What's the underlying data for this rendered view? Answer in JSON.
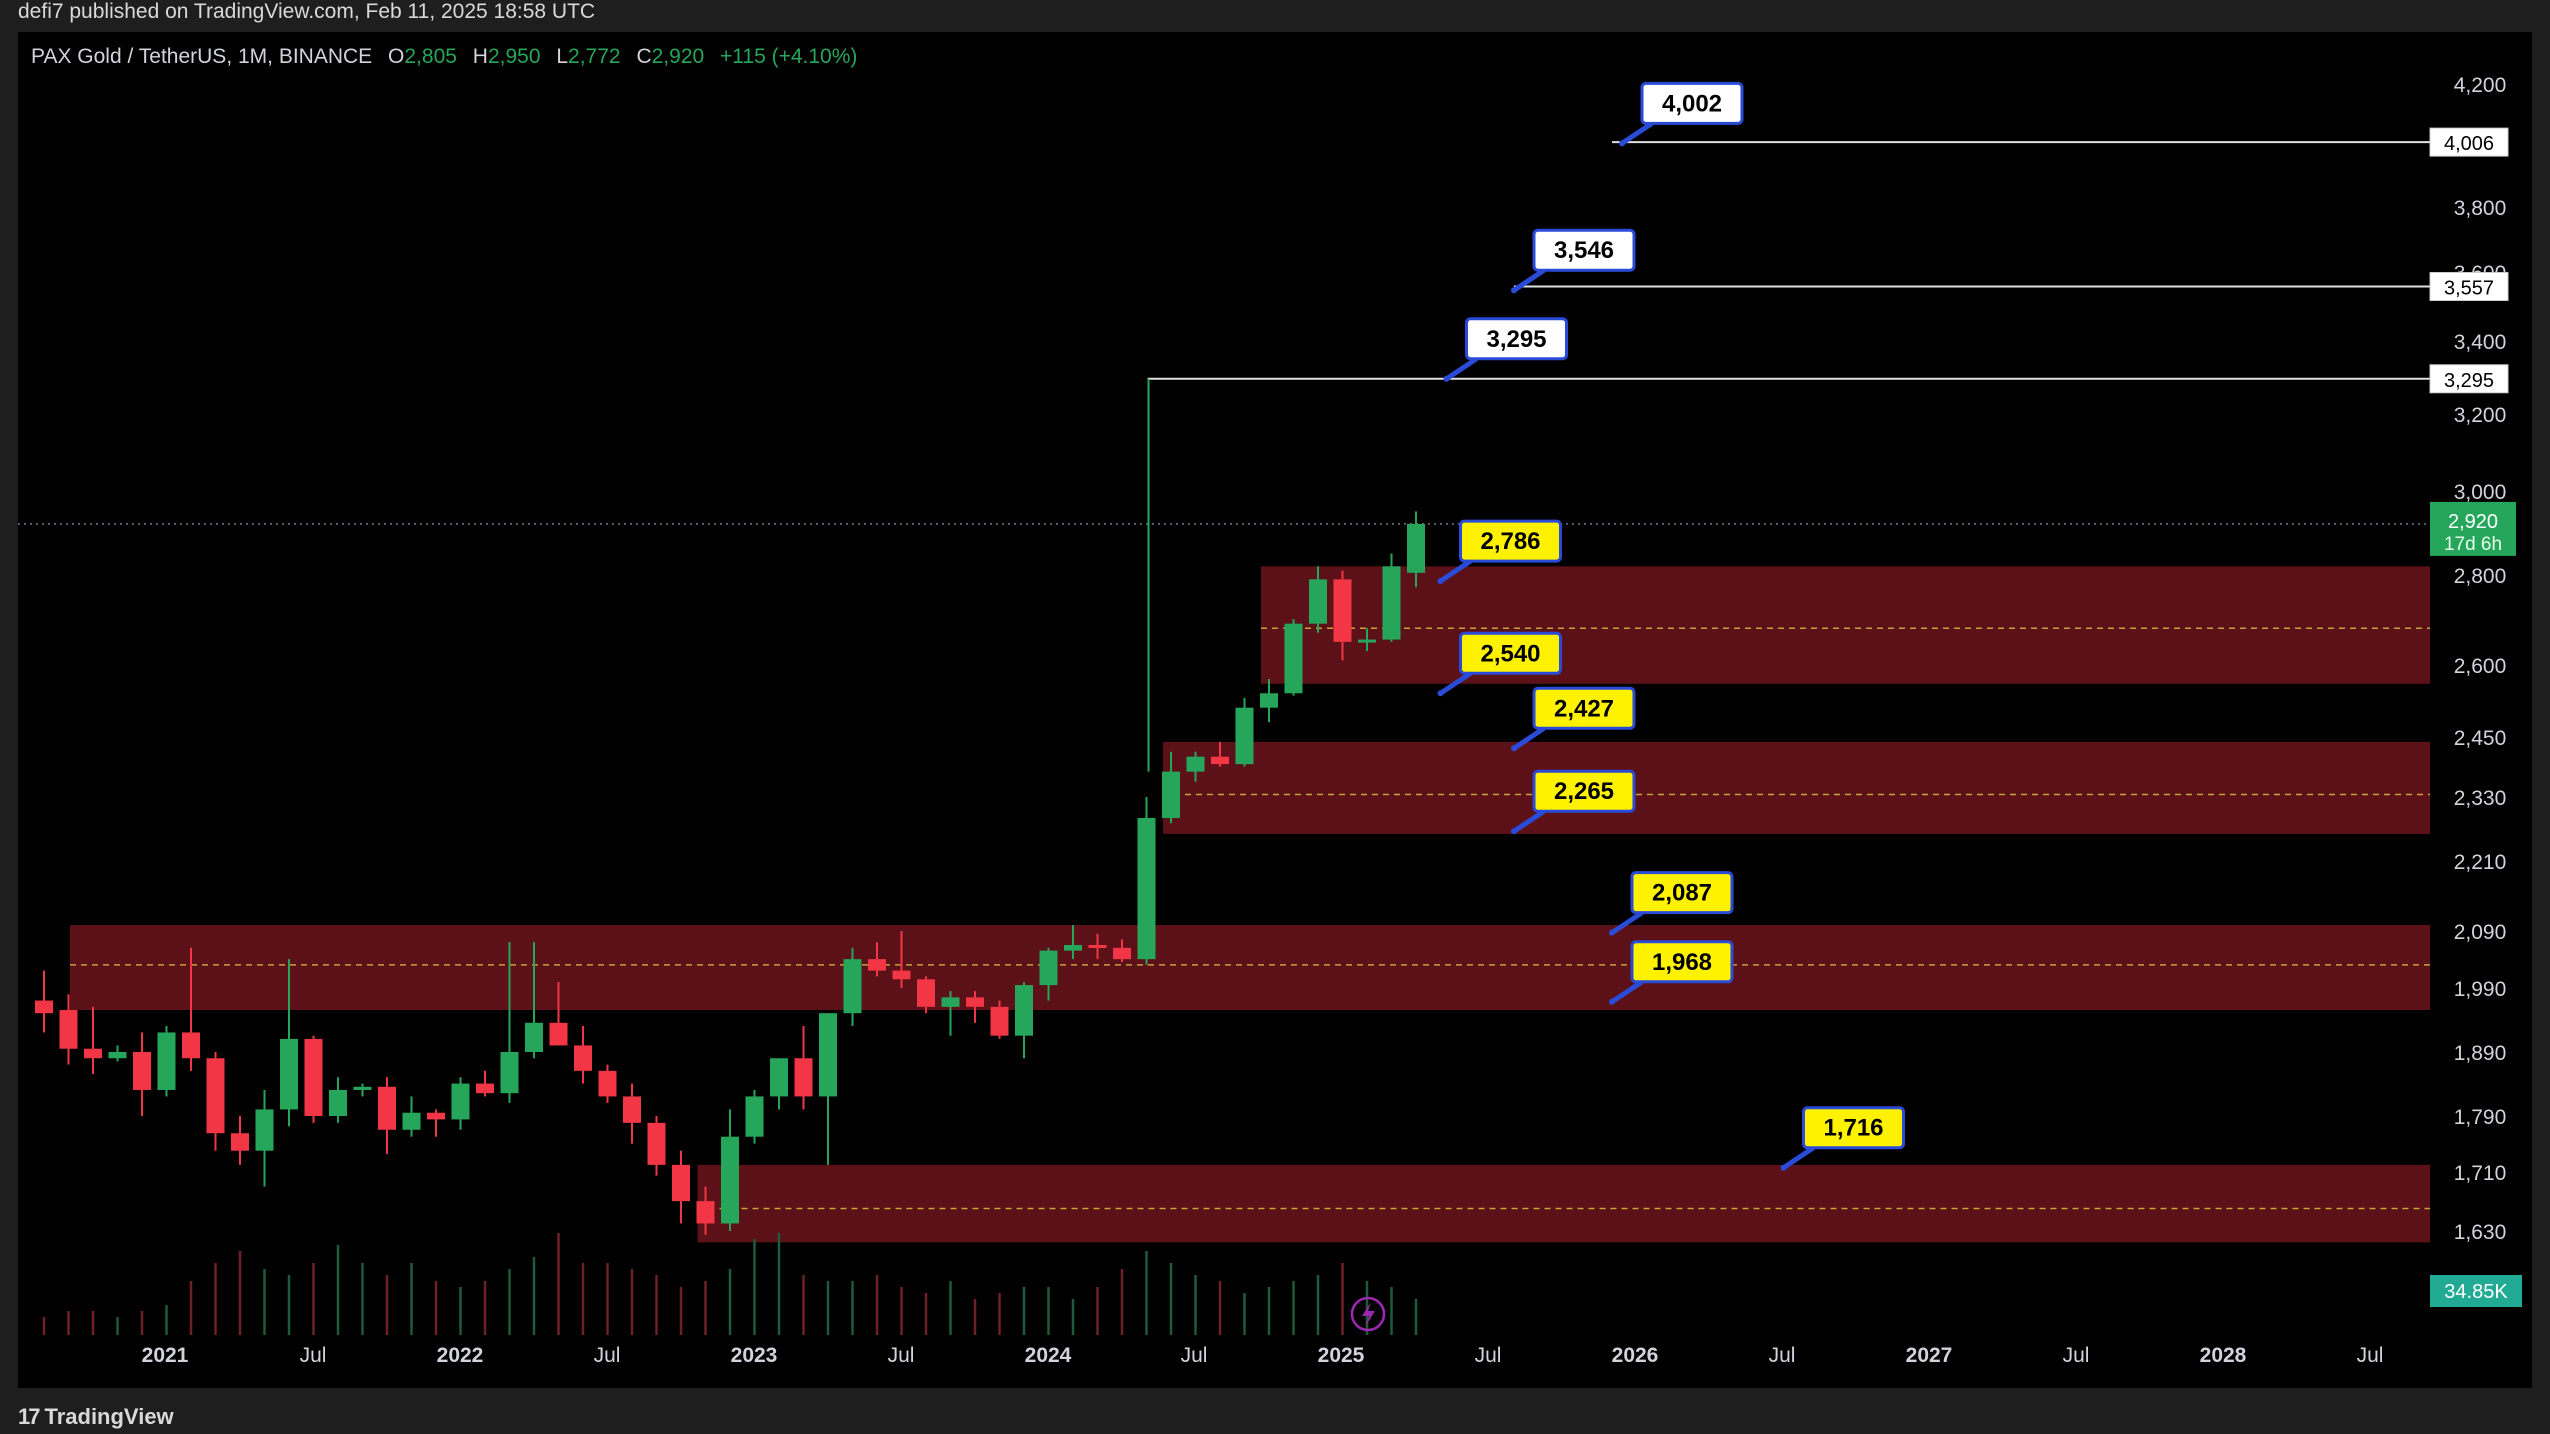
{
  "header": {
    "published": "defi7 published on TradingView.com, Feb 11, 2025 18:58 UTC"
  },
  "legend": {
    "symbol": "PAX Gold / TetherUS, 1M, BINANCE",
    "open_label": "O",
    "open": "2,805",
    "high_label": "H",
    "high": "2,950",
    "low_label": "L",
    "low": "2,772",
    "close_label": "C",
    "close": "2,920",
    "change": "+115 (+4.10%)"
  },
  "footer": {
    "brand": "TradingView",
    "brand_icon": "tradingview-logo-icon"
  },
  "colors": {
    "up": "#26a65b",
    "down": "#f23645",
    "zone": "#5c1018",
    "label_white": "#ffffff",
    "label_yellow": "#fff200",
    "label_border": "#2a4bd7",
    "price_tag": "#26a65b",
    "volume_tag": "#22ab94"
  },
  "chart_data": {
    "type": "candlestick",
    "timeframe": "1M",
    "y_scale": "log",
    "ylim": [
      1570,
      4300
    ],
    "xlim": [
      "2020-08",
      "2028-12"
    ],
    "x_ticks": [
      "2021",
      "Jul",
      "2022",
      "Jul",
      "2023",
      "Jul",
      "2024",
      "Jul",
      "2025",
      "Jul",
      "2026",
      "Jul",
      "2027",
      "Jul",
      "2028",
      "Jul"
    ],
    "y_ticks": [
      "4,200",
      "3,800",
      "3,600",
      "3,400",
      "3,200",
      "3,000",
      "2,800",
      "2,600",
      "2,450",
      "2,330",
      "2,210",
      "2,090",
      "1,990",
      "1,890",
      "1,790",
      "1,710",
      "1,630"
    ],
    "candles": [
      {
        "t": "2020-09",
        "o": 1970,
        "h": 2020,
        "l": 1920,
        "c": 1950
      },
      {
        "t": "2020-10",
        "o": 1955,
        "h": 1980,
        "l": 1870,
        "c": 1895
      },
      {
        "t": "2020-11",
        "o": 1895,
        "h": 1960,
        "l": 1855,
        "c": 1880
      },
      {
        "t": "2020-12",
        "o": 1880,
        "h": 1900,
        "l": 1875,
        "c": 1890
      },
      {
        "t": "2021-01",
        "o": 1890,
        "h": 1920,
        "l": 1790,
        "c": 1830
      },
      {
        "t": "2021-02",
        "o": 1830,
        "h": 1930,
        "l": 1820,
        "c": 1920
      },
      {
        "t": "2021-03",
        "o": 1920,
        "h": 2060,
        "l": 1860,
        "c": 1880
      },
      {
        "t": "2021-04",
        "o": 1880,
        "h": 1890,
        "l": 1740,
        "c": 1765
      },
      {
        "t": "2021-05",
        "o": 1765,
        "h": 1790,
        "l": 1720,
        "c": 1740
      },
      {
        "t": "2021-06",
        "o": 1740,
        "h": 1830,
        "l": 1690,
        "c": 1800
      },
      {
        "t": "2021-07",
        "o": 1800,
        "h": 2040,
        "l": 1775,
        "c": 1910
      },
      {
        "t": "2021-08",
        "o": 1910,
        "h": 1915,
        "l": 1780,
        "c": 1790
      },
      {
        "t": "2021-09",
        "o": 1790,
        "h": 1850,
        "l": 1780,
        "c": 1830
      },
      {
        "t": "2021-10",
        "o": 1830,
        "h": 1840,
        "l": 1820,
        "c": 1835
      },
      {
        "t": "2021-11",
        "o": 1835,
        "h": 1850,
        "l": 1735,
        "c": 1770
      },
      {
        "t": "2021-12",
        "o": 1770,
        "h": 1820,
        "l": 1760,
        "c": 1795
      },
      {
        "t": "2021-01b",
        "o": 1795,
        "h": 1800,
        "l": 1760,
        "c": 1785
      },
      {
        "t": "2022-01",
        "o": 1785,
        "h": 1850,
        "l": 1770,
        "c": 1840
      },
      {
        "t": "2022-02",
        "o": 1840,
        "h": 1860,
        "l": 1820,
        "c": 1825
      },
      {
        "t": "2022-03",
        "o": 1825,
        "h": 2070,
        "l": 1810,
        "c": 1890
      },
      {
        "t": "2022-04",
        "o": 1890,
        "h": 2070,
        "l": 1880,
        "c": 1935
      },
      {
        "t": "2022-05",
        "o": 1935,
        "h": 2000,
        "l": 1900,
        "c": 1900
      },
      {
        "t": "2022-06",
        "o": 1900,
        "h": 1930,
        "l": 1840,
        "c": 1860
      },
      {
        "t": "2022-07",
        "o": 1860,
        "h": 1870,
        "l": 1810,
        "c": 1820
      },
      {
        "t": "2022-08",
        "o": 1820,
        "h": 1840,
        "l": 1750,
        "c": 1780
      },
      {
        "t": "2022-09",
        "o": 1780,
        "h": 1790,
        "l": 1705,
        "c": 1720
      },
      {
        "t": "2022-10",
        "o": 1720,
        "h": 1740,
        "l": 1640,
        "c": 1670
      },
      {
        "t": "2022-11",
        "o": 1670,
        "h": 1690,
        "l": 1625,
        "c": 1640
      },
      {
        "t": "2022-12",
        "o": 1640,
        "h": 1800,
        "l": 1630,
        "c": 1760
      },
      {
        "t": "2023-01",
        "o": 1760,
        "h": 1830,
        "l": 1750,
        "c": 1820
      },
      {
        "t": "2023-02",
        "o": 1820,
        "h": 1880,
        "l": 1800,
        "c": 1880
      },
      {
        "t": "2023-03",
        "o": 1880,
        "h": 1930,
        "l": 1800,
        "c": 1820
      },
      {
        "t": "2023-04",
        "o": 1820,
        "h": 1950,
        "l": 1720,
        "c": 1950
      },
      {
        "t": "2023-05",
        "o": 1950,
        "h": 2060,
        "l": 1930,
        "c": 2040
      },
      {
        "t": "2023-06",
        "o": 2040,
        "h": 2070,
        "l": 2010,
        "c": 2020
      },
      {
        "t": "2023-07",
        "o": 2020,
        "h": 2090,
        "l": 1990,
        "c": 2005
      },
      {
        "t": "2023-08",
        "o": 2005,
        "h": 2010,
        "l": 1950,
        "c": 1960
      },
      {
        "t": "2023-09",
        "o": 1960,
        "h": 1985,
        "l": 1915,
        "c": 1975
      },
      {
        "t": "2023-10",
        "o": 1975,
        "h": 1985,
        "l": 1935,
        "c": 1960
      },
      {
        "t": "2023-11",
        "o": 1960,
        "h": 1970,
        "l": 1910,
        "c": 1915
      },
      {
        "t": "2023-12",
        "o": 1915,
        "h": 2000,
        "l": 1880,
        "c": 1995
      },
      {
        "t": "2024-01",
        "o": 1995,
        "h": 2060,
        "l": 1970,
        "c": 2055
      },
      {
        "t": "2024-02",
        "o": 2055,
        "h": 2100,
        "l": 2040,
        "c": 2065
      },
      {
        "t": "2024-03",
        "o": 2065,
        "h": 2085,
        "l": 2040,
        "c": 2060
      },
      {
        "t": "2024-04",
        "o": 2060,
        "h": 2075,
        "l": 2035,
        "c": 2040
      },
      {
        "t": "2024-05",
        "o": 2040,
        "h": 2330,
        "l": 2030,
        "c": 2290
      },
      {
        "t": "2024-06",
        "o": 2290,
        "h": 3295,
        "l": 2280,
        "c": 2380
      },
      {
        "t": "2024-07",
        "o": 2380,
        "h": 2420,
        "l": 2360,
        "c": 2410
      },
      {
        "t": "2024-08",
        "o": 2410,
        "h": 2440,
        "l": 2390,
        "c": 2395
      },
      {
        "t": "2024-09",
        "o": 2395,
        "h": 2530,
        "l": 2390,
        "c": 2510
      },
      {
        "t": "2024-10",
        "o": 2510,
        "h": 2570,
        "l": 2480,
        "c": 2540
      },
      {
        "t": "2024-11",
        "o": 2540,
        "h": 2700,
        "l": 2535,
        "c": 2690
      },
      {
        "t": "2024-12",
        "o": 2690,
        "h": 2820,
        "l": 2670,
        "c": 2790
      },
      {
        "t": "2025-01",
        "o": 2790,
        "h": 2810,
        "l": 2610,
        "c": 2650
      },
      {
        "t": "2025-02",
        "o": 2650,
        "h": 2680,
        "l": 2630,
        "c": 2655
      },
      {
        "t": "2025-03",
        "o": 2655,
        "h": 2850,
        "l": 2650,
        "c": 2820
      },
      {
        "t": "2025-04",
        "o": 2805,
        "h": 2950,
        "l": 2772,
        "c": 2920
      }
    ],
    "zones": [
      {
        "from": "2024-11",
        "top": 2820,
        "bottom": 2560,
        "mid": 2680
      },
      {
        "from": "2024-07",
        "top": 2440,
        "bottom": 2260,
        "mid": 2335
      },
      {
        "from": "2020-10",
        "top": 2100,
        "bottom": 1955,
        "mid": 2030
      },
      {
        "from": "2022-12",
        "top": 1720,
        "bottom": 1615,
        "mid": 1660
      }
    ],
    "horizontal_lines": [
      {
        "from": "2026-01",
        "value": 4006,
        "label": "4,006"
      },
      {
        "from": "2025-09",
        "value": 3557,
        "label": "3,557"
      },
      {
        "from": "2024-06",
        "value": 3295,
        "label": "3,295"
      }
    ],
    "callouts": [
      {
        "text": "4,002",
        "style": "white",
        "at": "2026-01",
        "value": 4002
      },
      {
        "text": "3,546",
        "style": "white",
        "at": "2025-09",
        "value": 3546
      },
      {
        "text": "3,295",
        "style": "white",
        "at": "2025-06",
        "value": 3295
      },
      {
        "text": "2,786",
        "style": "yellow",
        "at": "2025-06",
        "value": 2786
      },
      {
        "text": "2,540",
        "style": "yellow",
        "at": "2025-06",
        "value": 2540
      },
      {
        "text": "2,427",
        "style": "yellow",
        "at": "2025-09",
        "value": 2427
      },
      {
        "text": "2,265",
        "style": "yellow",
        "at": "2025-09",
        "value": 2265
      },
      {
        "text": "2,087",
        "style": "yellow",
        "at": "2026-01",
        "value": 2087
      },
      {
        "text": "1,968",
        "style": "yellow",
        "at": "2026-01",
        "value": 1968
      },
      {
        "text": "1,716",
        "style": "yellow",
        "at": "2026-08",
        "value": 1716
      }
    ],
    "current_price": {
      "value": 2920,
      "label": "2,920",
      "countdown": "17d 6h"
    },
    "volume_label": "34.85K",
    "volumes": [
      3,
      4,
      4,
      3,
      4,
      5,
      9,
      12,
      14,
      11,
      10,
      12,
      15,
      12,
      10,
      12,
      9,
      8,
      9,
      11,
      13,
      17,
      12,
      12,
      11,
      10,
      8,
      9,
      11,
      16,
      17,
      10,
      9,
      9,
      10,
      8,
      7,
      9,
      6,
      7,
      8,
      8,
      6,
      8,
      11,
      14,
      12,
      10,
      9,
      7,
      8,
      9,
      10,
      12,
      9,
      8,
      6
    ]
  }
}
